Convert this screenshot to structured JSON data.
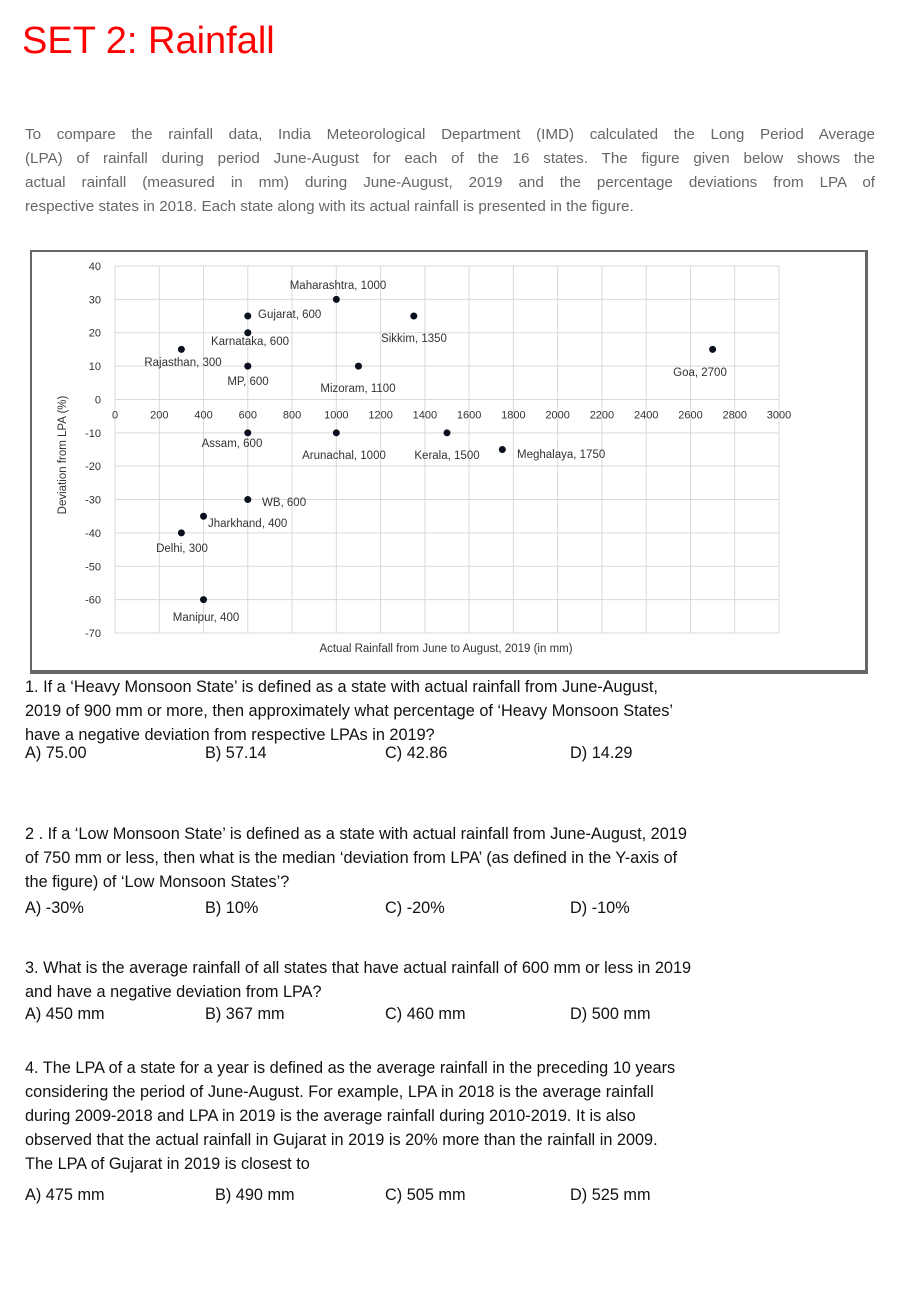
{
  "title": "SET 2: Rainfall",
  "intro_lines": [
    "To compare the rainfall data, India Meteorological Department (IMD) calculated the Long Period Average",
    "(LPA) of rainfall during period June-August for each of the 16 states. The figure given below shows the",
    "actual rainfall (measured in mm) during June-August, 2019 and the percentage deviations from LPA of",
    "respective states in 2018. Each state along with its actual rainfall is presented in the figure."
  ],
  "chart_data": {
    "type": "scatter",
    "title": "",
    "xlabel": "Actual Rainfall from June to August, 2019 (in mm)",
    "ylabel": "Deviation from LPA (%)",
    "xlim": [
      0,
      3000
    ],
    "ylim": [
      -70,
      40
    ],
    "xticks": [
      0,
      200,
      400,
      600,
      800,
      1000,
      1200,
      1400,
      1600,
      1800,
      2000,
      2200,
      2400,
      2600,
      2800,
      3000
    ],
    "yticks": [
      40,
      30,
      20,
      10,
      0,
      -10,
      -20,
      -30,
      -40,
      -50,
      -60,
      -70
    ],
    "grid": true,
    "marker_color": "#0a0f1e",
    "points": [
      {
        "label": "Maharashtra, 1000",
        "x": 1000,
        "y": 30
      },
      {
        "label": "Gujarat, 600",
        "x": 600,
        "y": 25
      },
      {
        "label": "Karnataka, 600",
        "x": 600,
        "y": 20
      },
      {
        "label": "Rajasthan, 300",
        "x": 300,
        "y": 15
      },
      {
        "label": "MP, 600",
        "x": 600,
        "y": 10
      },
      {
        "label": "Mizoram, 1100",
        "x": 1100,
        "y": 10
      },
      {
        "label": "Sikkim, 1350",
        "x": 1350,
        "y": 25
      },
      {
        "label": "Goa, 2700",
        "x": 2700,
        "y": 15
      },
      {
        "label": "Assam, 600",
        "x": 600,
        "y": -10
      },
      {
        "label": "Arunachal, 1000",
        "x": 1000,
        "y": -10
      },
      {
        "label": "Kerala, 1500",
        "x": 1500,
        "y": -10
      },
      {
        "label": "Meghalaya, 1750",
        "x": 1750,
        "y": -15
      },
      {
        "label": "WB, 600",
        "x": 600,
        "y": -30
      },
      {
        "label": "Jharkhand, 400",
        "x": 400,
        "y": -35
      },
      {
        "label": "Delhi, 300",
        "x": 300,
        "y": -40
      },
      {
        "label": "Manipur, 400",
        "x": 400,
        "y": -60
      }
    ]
  },
  "questions": [
    {
      "lines": [
        "1. If a ‘Heavy Monsoon State’ is defined as a state with actual rainfall from June-August,",
        "2019 of 900 mm or more, then approximately what percentage of ‘Heavy Monsoon States’",
        "have a negative deviation from respective LPAs in 2019?"
      ],
      "options": [
        "A)   75.00",
        "B) 57.14",
        "C) 42.86",
        "D) 14.29"
      ]
    },
    {
      "lines": [
        "2 . If a ‘Low Monsoon State’ is defined as a state with actual rainfall from June-August, 2019",
        "of 750 mm or less, then what is the median ‘deviation from LPA’ (as defined in the Y-axis of",
        "the figure) of ‘Low Monsoon States’?"
      ],
      "options": [
        "A)   -30%",
        "B) 10%",
        "C) -20%",
        "D) -10%"
      ]
    },
    {
      "lines": [
        "3. What is the average rainfall of all states that have actual rainfall of 600 mm or less in 2019",
        "and have a negative deviation from LPA?"
      ],
      "options": [
        "A)   450 mm",
        "B) 367 mm",
        "C) 460 mm",
        "D) 500 mm"
      ]
    },
    {
      "lines": [
        "4. The LPA of a state for a year is defined as the average rainfall in the preceding 10 years",
        "considering the period of June-August. For example, LPA in 2018 is the average rainfall",
        "during 2009-2018 and LPA in 2019 is the average rainfall during 2010-2019. It is also",
        "observed that the actual rainfall in Gujarat in 2019 is 20% more than the rainfall in 2009.",
        "The LPA of Gujarat in 2019 is closest to"
      ],
      "options": [
        "A) 475 mm",
        "B) 490 mm",
        "C) 505 mm",
        "D) 525 mm"
      ]
    }
  ]
}
